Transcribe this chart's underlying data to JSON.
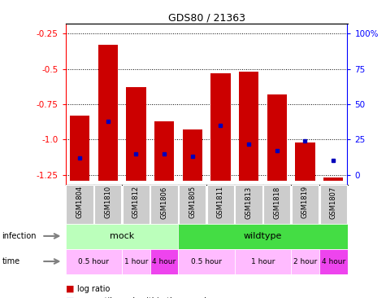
{
  "title": "GDS80 / 21363",
  "samples": [
    "GSM1804",
    "GSM1810",
    "GSM1812",
    "GSM1806",
    "GSM1805",
    "GSM1811",
    "GSM1813",
    "GSM1818",
    "GSM1819",
    "GSM1807"
  ],
  "log_ratios": [
    -0.83,
    -0.33,
    -0.63,
    -0.87,
    -0.93,
    -0.53,
    -0.52,
    -0.68,
    -1.02,
    -1.27
  ],
  "percentile_ranks": [
    12,
    38,
    15,
    15,
    13,
    35,
    22,
    17,
    24,
    10
  ],
  "ylim": [
    -1.32,
    -0.18
  ],
  "bar_bottom": -1.29,
  "y_ticks": [
    -1.25,
    -1.0,
    -0.75,
    -0.5,
    -0.25
  ],
  "y2_ticks": [
    0,
    25,
    50,
    75,
    100
  ],
  "y2_tick_positions": [
    -1.25,
    -1.0,
    -0.75,
    -0.5,
    -0.25
  ],
  "bar_color": "#cc0000",
  "dot_color": "#0000bb",
  "infection_groups": [
    {
      "label": "mock",
      "start": 0,
      "end": 3,
      "color": "#bbffbb"
    },
    {
      "label": "wildtype",
      "start": 4,
      "end": 9,
      "color": "#44dd44"
    }
  ],
  "time_groups": [
    {
      "label": "0.5 hour",
      "start": 0,
      "end": 1,
      "color": "#ffbbff"
    },
    {
      "label": "1 hour",
      "start": 2,
      "end": 2,
      "color": "#ffbbff"
    },
    {
      "label": "4 hour",
      "start": 3,
      "end": 3,
      "color": "#ee44ee"
    },
    {
      "label": "0.5 hour",
      "start": 4,
      "end": 5,
      "color": "#ffbbff"
    },
    {
      "label": "1 hour",
      "start": 6,
      "end": 7,
      "color": "#ffbbff"
    },
    {
      "label": "2 hour",
      "start": 8,
      "end": 8,
      "color": "#ffbbff"
    },
    {
      "label": "4 hour",
      "start": 9,
      "end": 9,
      "color": "#ee44ee"
    }
  ]
}
